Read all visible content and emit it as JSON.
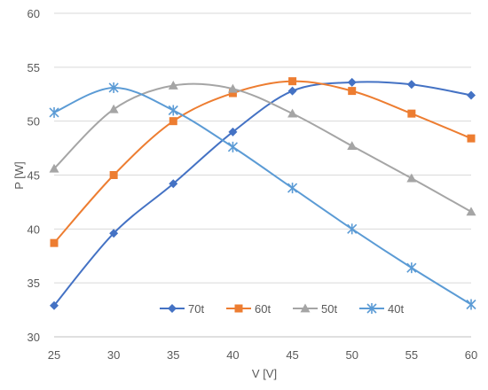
{
  "chart_data": {
    "type": "line",
    "smooth": true,
    "xlabel": "V [V]",
    "ylabel": "P [W]",
    "xlim": [
      25,
      60
    ],
    "ylim": [
      30,
      60
    ],
    "x_ticks": [
      25,
      30,
      35,
      40,
      45,
      50,
      55,
      60
    ],
    "y_ticks": [
      30,
      35,
      40,
      45,
      50,
      55,
      60
    ],
    "grid": "horizontal",
    "legend_position": "bottom-center-inside",
    "x": [
      25,
      30,
      35,
      40,
      45,
      50,
      55,
      60
    ],
    "series": [
      {
        "name": "70t",
        "marker": "diamond",
        "color": "#4472C4",
        "values": [
          32.9,
          39.6,
          44.2,
          49.0,
          52.8,
          53.6,
          53.4,
          52.4
        ]
      },
      {
        "name": "60t",
        "marker": "square",
        "color": "#ED7D31",
        "values": [
          38.7,
          45.0,
          50.0,
          52.6,
          53.7,
          52.8,
          50.7,
          48.4
        ]
      },
      {
        "name": "50t",
        "marker": "triangle",
        "color": "#A5A5A5",
        "values": [
          45.6,
          51.1,
          53.3,
          53.0,
          50.7,
          47.7,
          44.7,
          41.6
        ]
      },
      {
        "name": "40t",
        "marker": "star",
        "color": "#5B9BD5",
        "values": [
          50.8,
          53.1,
          51.0,
          47.6,
          43.8,
          40.0,
          36.4,
          33.0
        ]
      }
    ]
  }
}
